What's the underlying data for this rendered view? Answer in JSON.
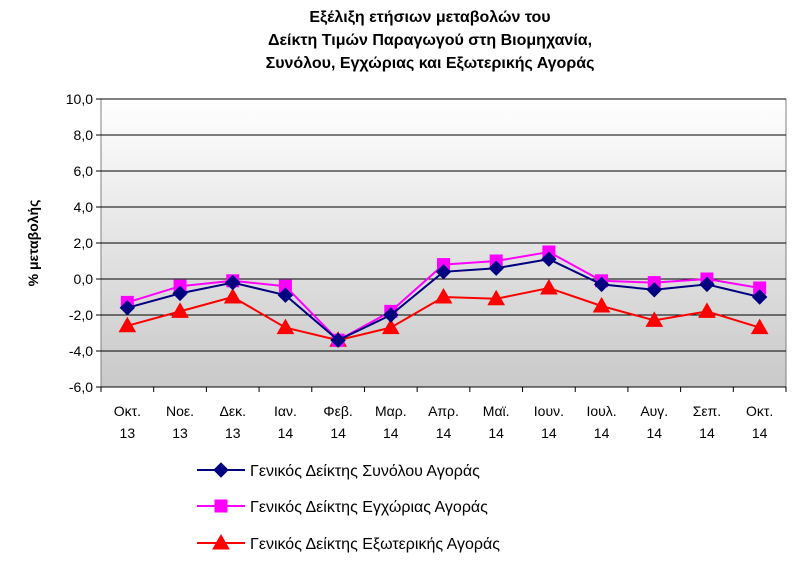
{
  "chart_data": {
    "type": "line",
    "title_lines": [
      "Εξέλιξη ετήσιων μεταβολών του",
      "Δείκτη Τιμών Παραγωγού στη Βιομηχανία,",
      "Συνόλου, Εγχώριας και Εξωτερικής Αγοράς"
    ],
    "ylabel": "% μεταβολής",
    "ylim": [
      -6,
      10
    ],
    "yticks": [
      10,
      8,
      6,
      4,
      2,
      0,
      -2,
      -4,
      -6
    ],
    "ytick_labels": [
      "10,0",
      "8,0",
      "6,0",
      "4,0",
      "2,0",
      "0,0",
      "-2,0",
      "-4,0",
      "-6,0"
    ],
    "categories": [
      [
        "Οκτ.",
        "13"
      ],
      [
        "Νοε.",
        "13"
      ],
      [
        "Δεκ.",
        "13"
      ],
      [
        "Ιαν.",
        "14"
      ],
      [
        "Φεβ.",
        "14"
      ],
      [
        "Μαρ.",
        "14"
      ],
      [
        "Απρ.",
        "14"
      ],
      [
        "Μαϊ.",
        "14"
      ],
      [
        "Ιουν.",
        "14"
      ],
      [
        "Ιουλ.",
        "14"
      ],
      [
        "Αυγ.",
        "14"
      ],
      [
        "Σεπ.",
        "14"
      ],
      [
        "Οκτ.",
        "14"
      ]
    ],
    "grid": true,
    "legend_position": "bottom",
    "series": [
      {
        "name": "Γενικός Δείκτης Συνόλου Αγοράς",
        "color": "#000080",
        "marker": "diamond",
        "values": [
          -1.6,
          -0.8,
          -0.2,
          -0.9,
          -3.4,
          -2.0,
          0.4,
          0.6,
          1.1,
          -0.3,
          -0.6,
          -0.3,
          -1.0
        ]
      },
      {
        "name": "Γενικός Δείκτης Εγχώριας Αγοράς",
        "color": "#ff00ff",
        "marker": "square",
        "values": [
          -1.3,
          -0.4,
          -0.1,
          -0.4,
          -3.4,
          -1.8,
          0.8,
          1.0,
          1.5,
          -0.1,
          -0.2,
          0.0,
          -0.5
        ]
      },
      {
        "name": "Γενικός Δείκτης Εξωτερικής Αγοράς",
        "color": "#ff0000",
        "marker": "triangle",
        "values": [
          -2.6,
          -1.8,
          -1.0,
          -2.7,
          -3.4,
          -2.7,
          -1.0,
          -1.1,
          -0.5,
          -1.5,
          -2.3,
          -1.8,
          -2.7
        ]
      }
    ]
  }
}
